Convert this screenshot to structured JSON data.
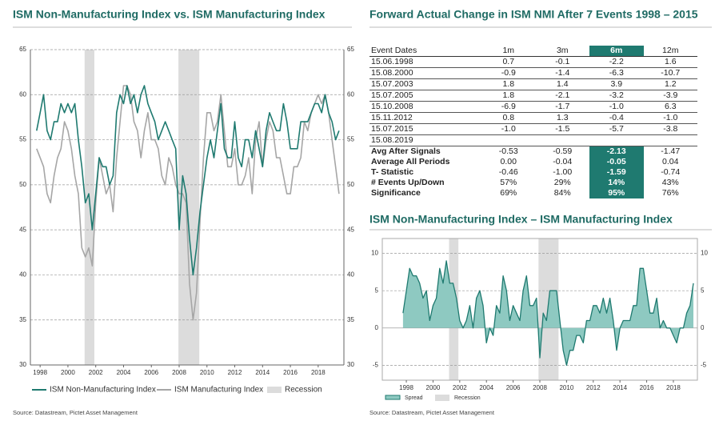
{
  "chart_data": [
    {
      "type": "line",
      "title": "ISM Non-Manufacturing Index vs. ISM Manufacturing Index",
      "source": "Source: Datastream, Pictet Asset Management",
      "xlim": [
        1997.3,
        2019.85
      ],
      "xticks": [
        1998,
        2000,
        2002,
        2004,
        2006,
        2008,
        2010,
        2012,
        2014,
        2016,
        2018
      ],
      "ylim": [
        30,
        65
      ],
      "yticks": [
        30,
        35,
        40,
        45,
        50,
        55,
        60,
        65
      ],
      "grid": true,
      "recessions": [
        [
          2001.2,
          2001.9
        ],
        [
          2007.95,
          2009.45
        ]
      ],
      "recession_label": "Recession",
      "recession_color": "#dcdcdc",
      "x": [
        1997.75,
        1998,
        1998.25,
        1998.5,
        1998.75,
        1999,
        1999.25,
        1999.5,
        1999.75,
        2000,
        2000.25,
        2000.5,
        2000.75,
        2001,
        2001.25,
        2001.5,
        2001.75,
        2002,
        2002.25,
        2002.5,
        2002.75,
        2003,
        2003.25,
        2003.5,
        2003.75,
        2004,
        2004.25,
        2004.5,
        2004.75,
        2005,
        2005.25,
        2005.5,
        2005.75,
        2006,
        2006.25,
        2006.5,
        2006.75,
        2007,
        2007.25,
        2007.5,
        2007.75,
        2008,
        2008.25,
        2008.5,
        2008.75,
        2009,
        2009.25,
        2009.5,
        2009.75,
        2010,
        2010.25,
        2010.5,
        2010.75,
        2011,
        2011.25,
        2011.5,
        2011.75,
        2012,
        2012.25,
        2012.5,
        2012.75,
        2013,
        2013.25,
        2013.5,
        2013.75,
        2014,
        2014.25,
        2014.5,
        2014.75,
        2015,
        2015.25,
        2015.5,
        2015.75,
        2016,
        2016.25,
        2016.5,
        2016.75,
        2017,
        2017.25,
        2017.5,
        2017.75,
        2018,
        2018.25,
        2018.5,
        2018.75,
        2019,
        2019.25,
        2019.5
      ],
      "series": [
        {
          "name": "ISM Non-Manufacturing Index",
          "color": "#1f7a70",
          "values": [
            56,
            58,
            60,
            56,
            55,
            57,
            57,
            59,
            58,
            59,
            58,
            59,
            55,
            52,
            48,
            49,
            45,
            49,
            53,
            52,
            52,
            50,
            51,
            58,
            60,
            59,
            61,
            59,
            60,
            58,
            60,
            61,
            59,
            58,
            57,
            55,
            56,
            57,
            56,
            55,
            54,
            45,
            51,
            49,
            44,
            40,
            43,
            47,
            50,
            53,
            55,
            53,
            56,
            59,
            54,
            53,
            53,
            57,
            53,
            52,
            55,
            55,
            53,
            56,
            54,
            52,
            56,
            58,
            57,
            56,
            56,
            59,
            57,
            54,
            54,
            54,
            57,
            57,
            57,
            58,
            59,
            59,
            58,
            60,
            58,
            57,
            55,
            56
          ]
        },
        {
          "name": "ISM Manufacturing Index",
          "color": "#a6a6a6",
          "values": [
            54,
            53,
            52,
            49,
            48,
            51,
            53,
            54,
            57,
            56,
            54,
            51,
            49,
            43,
            42,
            43,
            41,
            48,
            53,
            51,
            49,
            50,
            47,
            53,
            57,
            61,
            61,
            60,
            57,
            56,
            53,
            56,
            58,
            55,
            55,
            54,
            51,
            50,
            53,
            52,
            50,
            49,
            49,
            48,
            39,
            35,
            38,
            46,
            53,
            58,
            58,
            56,
            57,
            60,
            56,
            52,
            52,
            54,
            50,
            50,
            51,
            53,
            49,
            55,
            57,
            52,
            55,
            57,
            56,
            53,
            53,
            51,
            49,
            49,
            52,
            52,
            53,
            57,
            56,
            58,
            59,
            60,
            59,
            60,
            58,
            55,
            52,
            49
          ]
        }
      ]
    },
    {
      "type": "area",
      "title": "ISM Non-Manufacturing Index – ISM Manufacturing Index",
      "source": "Source: Datastream, Pictet Asset Management",
      "xlim": [
        1996.2,
        2019.8
      ],
      "xticks": [
        1998,
        2000,
        2002,
        2004,
        2006,
        2008,
        2010,
        2012,
        2014,
        2016,
        2018
      ],
      "ylim": [
        -7,
        12
      ],
      "yticks": [
        -5,
        0,
        5,
        10
      ],
      "grid": true,
      "recessions": [
        [
          2001.2,
          2001.9
        ],
        [
          2007.9,
          2009.4
        ]
      ],
      "recession_label": "Recession",
      "recession_color": "#dcdcdc",
      "x": [
        1997.75,
        1998,
        1998.25,
        1998.5,
        1998.75,
        1999,
        1999.25,
        1999.5,
        1999.75,
        2000,
        2000.25,
        2000.5,
        2000.75,
        2001,
        2001.25,
        2001.5,
        2001.75,
        2002,
        2002.25,
        2002.5,
        2002.75,
        2003,
        2003.25,
        2003.5,
        2003.75,
        2004,
        2004.25,
        2004.5,
        2004.75,
        2005,
        2005.25,
        2005.5,
        2005.75,
        2006,
        2006.25,
        2006.5,
        2006.75,
        2007,
        2007.25,
        2007.5,
        2007.75,
        2008,
        2008.25,
        2008.5,
        2008.75,
        2009,
        2009.25,
        2009.5,
        2009.75,
        2010,
        2010.25,
        2010.5,
        2010.75,
        2011,
        2011.25,
        2011.5,
        2011.75,
        2012,
        2012.25,
        2012.5,
        2012.75,
        2013,
        2013.25,
        2013.5,
        2013.75,
        2014,
        2014.25,
        2014.5,
        2014.75,
        2015,
        2015.25,
        2015.5,
        2015.75,
        2016,
        2016.25,
        2016.5,
        2016.75,
        2017,
        2017.25,
        2017.5,
        2017.75,
        2018,
        2018.25,
        2018.5,
        2018.75,
        2019,
        2019.25,
        2019.5
      ],
      "series": [
        {
          "name": "Spread",
          "color": "#1f7a70",
          "fill": "#8ec9c1",
          "values": [
            2,
            5,
            8,
            7,
            7,
            6,
            4,
            5,
            1,
            3,
            4,
            8,
            6,
            9,
            6,
            6,
            4,
            1,
            0,
            1,
            3,
            0,
            4,
            5,
            3,
            -2,
            0,
            -1,
            3,
            2,
            7,
            5,
            1,
            3,
            2,
            1,
            5,
            7,
            3,
            3,
            4,
            -4,
            2,
            1,
            5,
            5,
            5,
            1,
            -3,
            -5,
            -3,
            -3,
            -1,
            -1,
            -2,
            1,
            1,
            3,
            3,
            2,
            4,
            2,
            4,
            1,
            -3,
            0,
            1,
            1,
            1,
            3,
            3,
            8,
            8,
            5,
            2,
            2,
            4,
            0,
            1,
            0,
            0,
            -1,
            -2,
            0,
            0,
            2,
            3,
            6
          ]
        }
      ]
    }
  ],
  "table": {
    "title": "Forward Actual Change in ISM NMI After 7 Events 1998 – 2015",
    "header": [
      "Event Dates",
      "1m",
      "3m",
      "6m",
      "12m"
    ],
    "rows": [
      [
        "15.06.1998",
        "0.7",
        "-0.1",
        "-2.2",
        "1.6"
      ],
      [
        "15.08.2000",
        "-0.9",
        "-1.4",
        "-6.3",
        "-10.7"
      ],
      [
        "15.07.2003",
        "1.8",
        "1.4",
        "3.9",
        "1.2"
      ],
      [
        "15.07.2005",
        "1.8",
        "-2.1",
        "-3.2",
        "-3.9"
      ],
      [
        "15.10.2008",
        "-6.9",
        "-1.7",
        "-1.0",
        "6.3"
      ],
      [
        "15.11.2012",
        "0.8",
        "1.3",
        "-0.4",
        "-1.0"
      ],
      [
        "15.07.2015",
        "-1.0",
        "-1.5",
        "-5.7",
        "-3.8"
      ],
      [
        "15.08.2019"
      ]
    ],
    "summary": [
      [
        "Avg After Signals",
        "-0.53",
        "-0.59",
        "-2.13",
        "-1.47"
      ],
      [
        "Average All Periods",
        "0.00",
        "-0.04",
        "-0.05",
        "0.04"
      ],
      [
        "T- Statistic",
        "-0.46",
        "-1.00",
        "-1.59",
        "-0.74"
      ],
      [
        "# Events Up/Down",
        "57%",
        "29%",
        "14%",
        "43%"
      ],
      [
        "Significance",
        "69%",
        "84%",
        "95%",
        "76%"
      ]
    ]
  }
}
